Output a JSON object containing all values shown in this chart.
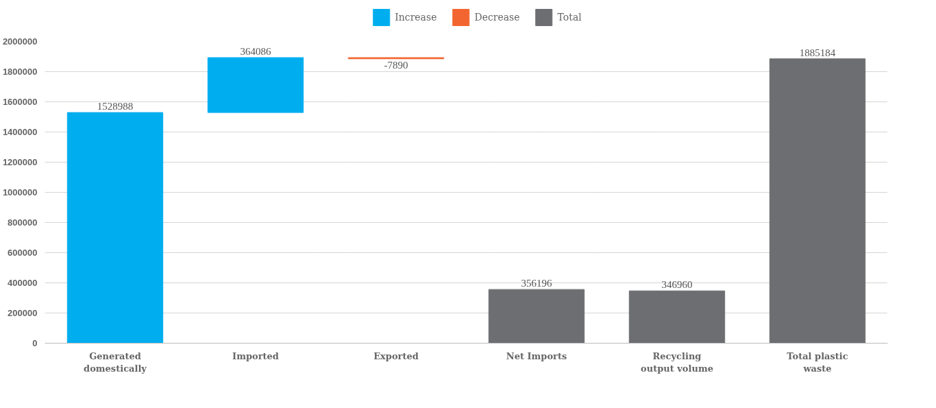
{
  "chart_data": {
    "type": "bar",
    "categories": [
      "Generated domestically",
      "Imported",
      "Exported",
      "Net Imports",
      "Recycling output volume",
      "Total plastic waste"
    ],
    "series": [
      {
        "name": "Increase",
        "color": "#00aeef",
        "values": [
          1528988,
          364086,
          null,
          null,
          null,
          null
        ],
        "base": [
          0,
          1528988,
          null,
          null,
          null,
          null
        ]
      },
      {
        "name": "Decrease",
        "color": "#f26531",
        "values": [
          null,
          null,
          -7890,
          null,
          null,
          null
        ],
        "base": [
          null,
          null,
          1893074,
          null,
          null,
          null
        ]
      },
      {
        "name": "Total",
        "color": "#6d6e71",
        "values": [
          null,
          null,
          null,
          356196,
          346960,
          1885184
        ],
        "base": [
          null,
          null,
          null,
          0,
          0,
          0
        ]
      }
    ],
    "ylim": [
      0,
      2000000
    ],
    "yticks": [
      0,
      200000,
      400000,
      600000,
      800000,
      1000000,
      1200000,
      1400000,
      1600000,
      1800000,
      2000000
    ],
    "grid": "y",
    "legend": "top",
    "data_labels": true
  }
}
